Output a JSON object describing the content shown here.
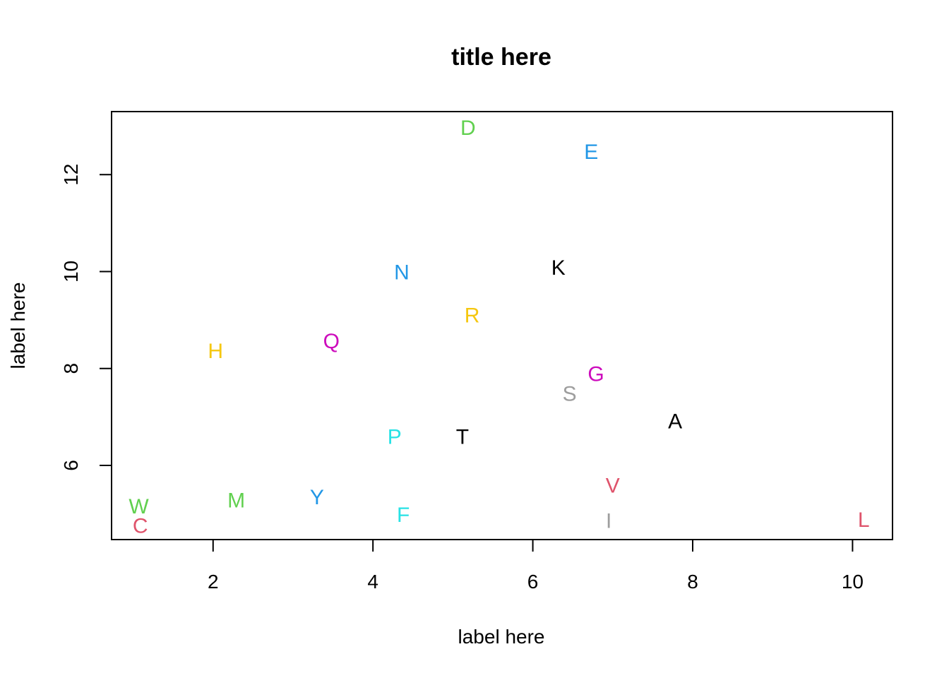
{
  "chart_data": {
    "type": "scatter",
    "title": "title here",
    "xlabel": "label here",
    "ylabel": "label here",
    "xlim": [
      0.73,
      10.5
    ],
    "ylim": [
      4.47,
      13.3
    ],
    "xticks": [
      2,
      4,
      6,
      8,
      10
    ],
    "yticks": [
      6,
      8,
      10,
      12
    ],
    "grid": false,
    "points": [
      {
        "label": "A",
        "x": 7.78,
        "y": 6.9,
        "color": "#000000"
      },
      {
        "label": "C",
        "x": 1.09,
        "y": 4.75,
        "color": "#DF536B"
      },
      {
        "label": "D",
        "x": 5.19,
        "y": 12.96,
        "color": "#61D04F"
      },
      {
        "label": "E",
        "x": 6.73,
        "y": 12.46,
        "color": "#2297E6"
      },
      {
        "label": "F",
        "x": 4.38,
        "y": 4.97,
        "color": "#28E2E5"
      },
      {
        "label": "G",
        "x": 6.79,
        "y": 7.88,
        "color": "#CD0BBC"
      },
      {
        "label": "H",
        "x": 2.03,
        "y": 8.35,
        "color": "#F5C710"
      },
      {
        "label": "I",
        "x": 6.95,
        "y": 4.85,
        "color": "#9E9E9E"
      },
      {
        "label": "K",
        "x": 6.32,
        "y": 10.07,
        "color": "#000000"
      },
      {
        "label": "L",
        "x": 10.14,
        "y": 4.87,
        "color": "#DF536B"
      },
      {
        "label": "M",
        "x": 2.29,
        "y": 5.27,
        "color": "#61D04F"
      },
      {
        "label": "N",
        "x": 4.36,
        "y": 9.98,
        "color": "#2297E6"
      },
      {
        "label": "P",
        "x": 4.27,
        "y": 6.58,
        "color": "#28E2E5"
      },
      {
        "label": "Q",
        "x": 3.48,
        "y": 8.56,
        "color": "#CD0BBC"
      },
      {
        "label": "R",
        "x": 5.24,
        "y": 9.09,
        "color": "#F5C710"
      },
      {
        "label": "S",
        "x": 6.46,
        "y": 7.47,
        "color": "#9E9E9E"
      },
      {
        "label": "T",
        "x": 5.12,
        "y": 6.58,
        "color": "#000000"
      },
      {
        "label": "V",
        "x": 7.0,
        "y": 5.58,
        "color": "#DF536B"
      },
      {
        "label": "W",
        "x": 1.07,
        "y": 5.15,
        "color": "#61D04F"
      },
      {
        "label": "Y",
        "x": 3.3,
        "y": 5.34,
        "color": "#2297E6"
      }
    ]
  }
}
